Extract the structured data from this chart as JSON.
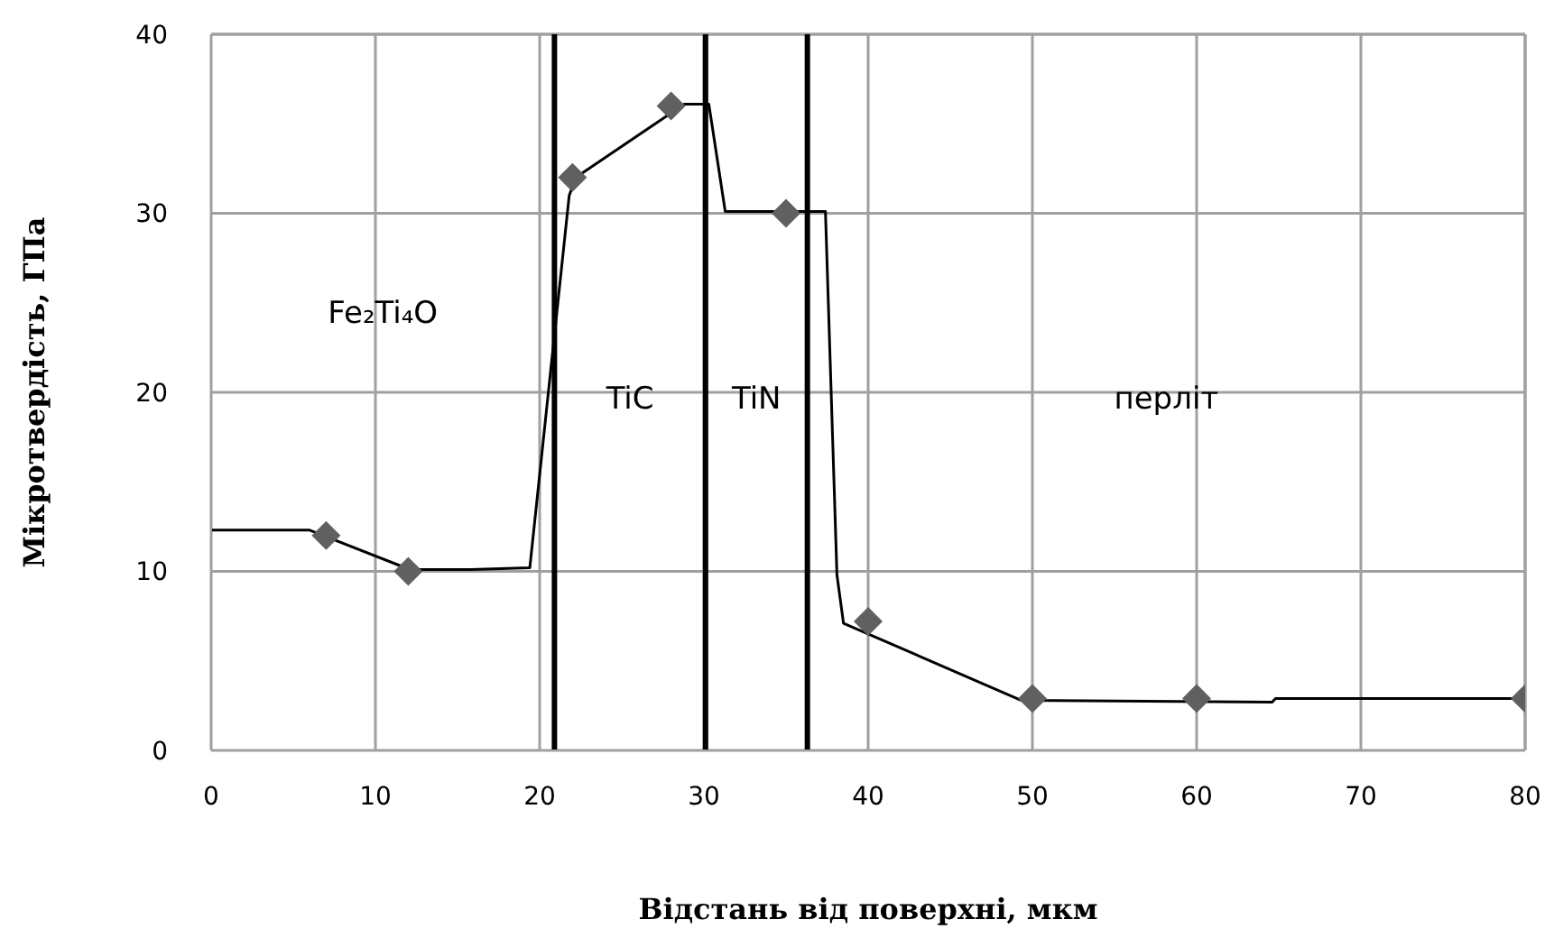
{
  "chart_data": {
    "type": "scatter",
    "xlabel": "Відстань від поверхні, мкм",
    "ylabel": "Мікротвердість, ГПа",
    "xlim": [
      0,
      80
    ],
    "xticks": [
      0,
      10,
      20,
      30,
      40,
      50,
      60,
      70,
      80
    ],
    "ylim": [
      0,
      40
    ],
    "yticks": [
      0,
      10,
      20,
      30,
      40
    ],
    "grid": true,
    "series": [
      {
        "type": "line",
        "color": "#000000",
        "marker": "none",
        "x": [
          0,
          6,
          12.1,
          15.8,
          19.4,
          21.8,
          22.2,
          28.8,
          30.3,
          31.3,
          37.4,
          38.1,
          38.5,
          49.3,
          64.6,
          64.8,
          80
        ],
        "values": [
          12.3,
          12.3,
          10.1,
          10.1,
          10.2,
          31,
          32,
          36.1,
          36.1,
          30.1,
          30.1,
          9.8,
          7.1,
          2.8,
          2.7,
          2.9,
          2.9
        ]
      },
      {
        "color": "#606060",
        "marker": "diamond",
        "x": [
          7,
          12,
          22,
          28,
          35,
          40,
          50,
          60,
          80
        ],
        "values": [
          12,
          10,
          32,
          36,
          30,
          7.2,
          2.9,
          2.9,
          2.9
        ]
      }
    ],
    "ref_lines": [
      {
        "axis": "x",
        "value": 20.9,
        "color": "#000000"
      },
      {
        "axis": "x",
        "value": 30.1,
        "color": "#000000"
      },
      {
        "axis": "x",
        "value": 36.3,
        "color": "#000000"
      }
    ],
    "annotations": [
      "Fe₂Ti₄O",
      "TiC",
      "TiN",
      "перліт"
    ]
  }
}
